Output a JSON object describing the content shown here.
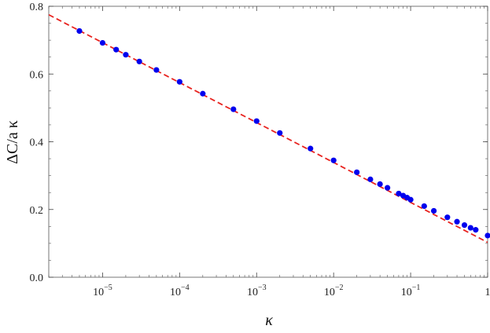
{
  "chart_data": {
    "type": "scatter",
    "title": "",
    "xlabel": "κ",
    "ylabel": "ΔC/a κ",
    "xscale": "log",
    "xlim": [
      2e-06,
      1
    ],
    "ylim": [
      0,
      0.8
    ],
    "grid": false,
    "x_tick_labels": [
      {
        "value": 1e-05,
        "base": "10",
        "exp": "−5"
      },
      {
        "value": 0.0001,
        "base": "10",
        "exp": "−4"
      },
      {
        "value": 0.001,
        "base": "10",
        "exp": "−3"
      },
      {
        "value": 0.01,
        "base": "10",
        "exp": "−2"
      },
      {
        "value": 0.1,
        "base": "10",
        "exp": "−1"
      },
      {
        "value": 1,
        "base": "1",
        "exp": ""
      }
    ],
    "y_tick_labels": [
      {
        "value": 0.0,
        "label": "0.0"
      },
      {
        "value": 0.2,
        "label": "0.2"
      },
      {
        "value": 0.4,
        "label": "0.4"
      },
      {
        "value": 0.6,
        "label": "0.6"
      },
      {
        "value": 0.8,
        "label": "0.8"
      }
    ],
    "series": [
      {
        "kind": "points",
        "color": "#0000ee",
        "points": [
          {
            "x": 5e-06,
            "y": 0.727
          },
          {
            "x": 1e-05,
            "y": 0.692
          },
          {
            "x": 1.5e-05,
            "y": 0.672
          },
          {
            "x": 2e-05,
            "y": 0.657
          },
          {
            "x": 3e-05,
            "y": 0.637
          },
          {
            "x": 5e-05,
            "y": 0.612
          },
          {
            "x": 0.0001,
            "y": 0.577
          },
          {
            "x": 0.0002,
            "y": 0.542
          },
          {
            "x": 0.0005,
            "y": 0.496
          },
          {
            "x": 0.001,
            "y": 0.461
          },
          {
            "x": 0.002,
            "y": 0.426
          },
          {
            "x": 0.005,
            "y": 0.38
          },
          {
            "x": 0.01,
            "y": 0.345
          },
          {
            "x": 0.02,
            "y": 0.31
          },
          {
            "x": 0.03,
            "y": 0.289
          },
          {
            "x": 0.04,
            "y": 0.275
          },
          {
            "x": 0.05,
            "y": 0.264
          },
          {
            "x": 0.07,
            "y": 0.247
          },
          {
            "x": 0.08,
            "y": 0.241
          },
          {
            "x": 0.09,
            "y": 0.235
          },
          {
            "x": 0.1,
            "y": 0.229
          },
          {
            "x": 0.15,
            "y": 0.21
          },
          {
            "x": 0.2,
            "y": 0.196
          },
          {
            "x": 0.3,
            "y": 0.177
          },
          {
            "x": 0.4,
            "y": 0.164
          },
          {
            "x": 0.5,
            "y": 0.154
          },
          {
            "x": 0.6,
            "y": 0.146
          },
          {
            "x": 0.7,
            "y": 0.14
          },
          {
            "x": 1,
            "y": 0.123
          }
        ]
      },
      {
        "kind": "fit-line",
        "style": "dashed",
        "color": "#e8231f",
        "points": [
          {
            "x": 2e-06,
            "y": 0.775
          },
          {
            "x": 1,
            "y": 0.103
          }
        ]
      }
    ]
  }
}
